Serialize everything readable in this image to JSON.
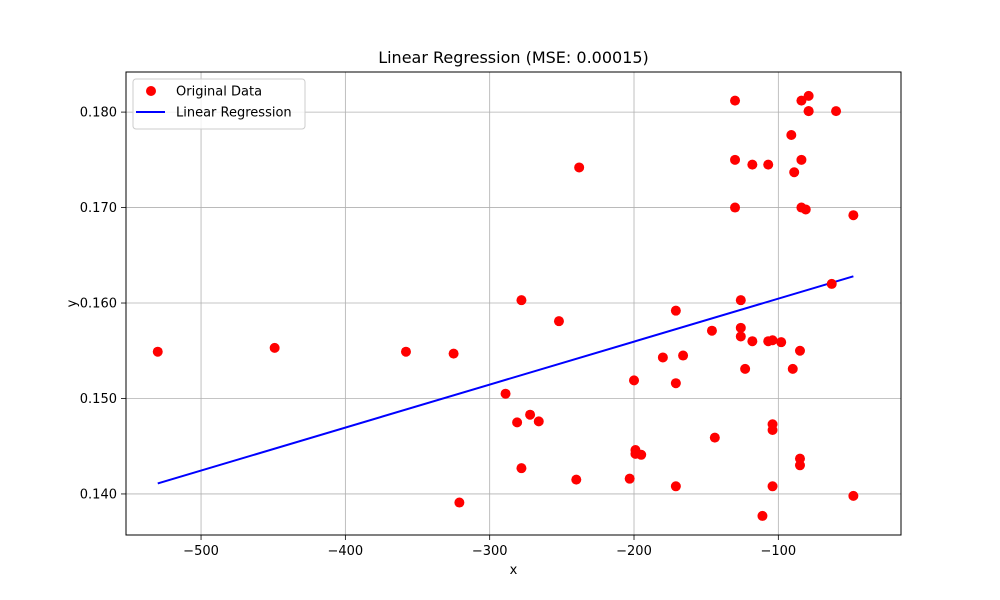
{
  "chart_data": {
    "type": "scatter",
    "title": "Linear Regression (MSE: 0.00015)",
    "xlabel": "x",
    "ylabel": "y",
    "xlim": [
      -552,
      -15
    ],
    "ylim": [
      0.1357,
      0.1842
    ],
    "xticks": [
      -500,
      -400,
      -300,
      -200,
      -100
    ],
    "xtick_labels": [
      "−500",
      "−400",
      "−300",
      "−200",
      "−100"
    ],
    "yticks": [
      0.14,
      0.15,
      0.16,
      0.17,
      0.18
    ],
    "ytick_labels": [
      "0.140",
      "0.150",
      "0.160",
      "0.170",
      "0.180"
    ],
    "grid": true,
    "legend_position": "upper-left",
    "series": [
      {
        "name": "Original Data",
        "kind": "scatter",
        "color": "#ff0000",
        "points": [
          [
            -530,
            0.1549
          ],
          [
            -449,
            0.1553
          ],
          [
            -358,
            0.1549
          ],
          [
            -325,
            0.1547
          ],
          [
            -321,
            0.1391
          ],
          [
            -289,
            0.1505
          ],
          [
            -281,
            0.1475
          ],
          [
            -278,
            0.1603
          ],
          [
            -278,
            0.1427
          ],
          [
            -272,
            0.1483
          ],
          [
            -266,
            0.1476
          ],
          [
            -252,
            0.1581
          ],
          [
            -240,
            0.1415
          ],
          [
            -238,
            0.1742
          ],
          [
            -203,
            0.1416
          ],
          [
            -200,
            0.1519
          ],
          [
            -199,
            0.1446
          ],
          [
            -199,
            0.1442
          ],
          [
            -195,
            0.1441
          ],
          [
            -180,
            0.1543
          ],
          [
            -171,
            0.1592
          ],
          [
            -171,
            0.1516
          ],
          [
            -171,
            0.1408
          ],
          [
            -166,
            0.1545
          ],
          [
            -146,
            0.1571
          ],
          [
            -144,
            0.1459
          ],
          [
            -130,
            0.1812
          ],
          [
            -130,
            0.175
          ],
          [
            -130,
            0.17
          ],
          [
            -126,
            0.1603
          ],
          [
            -126,
            0.1574
          ],
          [
            -126,
            0.1565
          ],
          [
            -123,
            0.1531
          ],
          [
            -118,
            0.1745
          ],
          [
            -118,
            0.156
          ],
          [
            -111,
            0.1377
          ],
          [
            -107,
            0.1745
          ],
          [
            -107,
            0.156
          ],
          [
            -104,
            0.1561
          ],
          [
            -104,
            0.1473
          ],
          [
            -104,
            0.1467
          ],
          [
            -104,
            0.1408
          ],
          [
            -98,
            0.1559
          ],
          [
            -91,
            0.1776
          ],
          [
            -90,
            0.1531
          ],
          [
            -89,
            0.1737
          ],
          [
            -85,
            0.155
          ],
          [
            -85,
            0.1437
          ],
          [
            -85,
            0.143
          ],
          [
            -84,
            0.1812
          ],
          [
            -84,
            0.175
          ],
          [
            -84,
            0.17
          ],
          [
            -81,
            0.1698
          ],
          [
            -79,
            0.1817
          ],
          [
            -79,
            0.1801
          ],
          [
            -79,
            0.1801
          ],
          [
            -60,
            0.1801
          ],
          [
            -63,
            0.162
          ],
          [
            -48,
            0.1692
          ],
          [
            -48,
            0.1398
          ]
        ]
      },
      {
        "name": "Linear Regression",
        "kind": "line",
        "color": "#0000ff",
        "points": [
          [
            -530,
            0.1411
          ],
          [
            -48,
            0.1628
          ]
        ]
      }
    ]
  }
}
